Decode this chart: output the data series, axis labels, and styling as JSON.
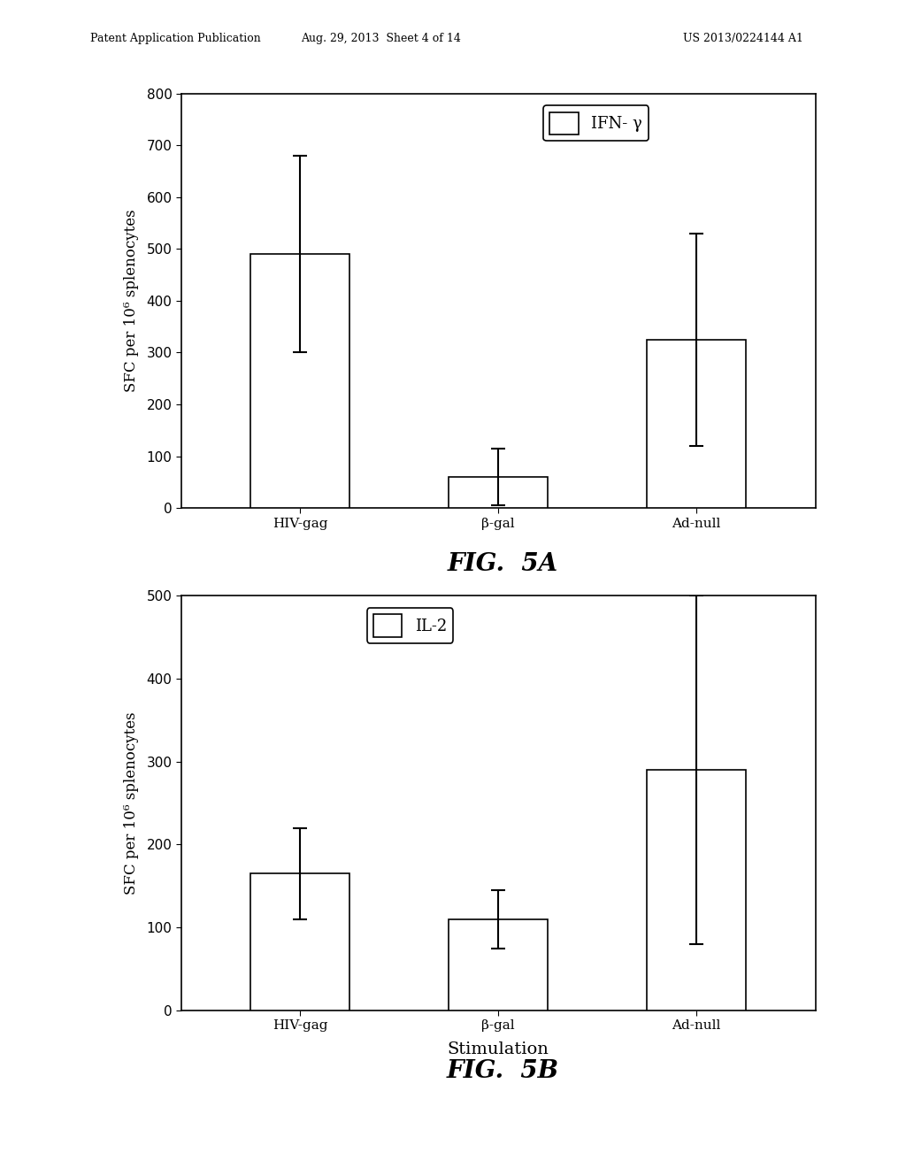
{
  "fig5a": {
    "categories": [
      "HIV-gag",
      "β-gal",
      "Ad-null"
    ],
    "values": [
      490,
      60,
      325
    ],
    "errors": [
      190,
      55,
      205
    ],
    "ylabel": "SFC per 10⁶ splenocytes",
    "ylim": [
      0,
      800
    ],
    "yticks": [
      0,
      100,
      200,
      300,
      400,
      500,
      600,
      700,
      800
    ],
    "legend_label": "IFN- γ",
    "fig_label": "FIG.  5A"
  },
  "fig5b": {
    "categories": [
      "HIV-gag",
      "β-gal",
      "Ad-null"
    ],
    "values": [
      165,
      110,
      290
    ],
    "errors": [
      55,
      35,
      210
    ],
    "ylabel": "SFC per 10⁶ splenocytes",
    "ylim": [
      0,
      500
    ],
    "yticks": [
      0,
      100,
      200,
      300,
      400,
      500
    ],
    "xlabel": "Stimulation",
    "legend_label": "IL-2",
    "fig_label": "FIG.  5B"
  },
  "bar_color": "#ffffff",
  "bar_edgecolor": "#000000",
  "bar_width": 0.5,
  "header_line1": "Patent Application Publication",
  "header_line2": "Aug. 29, 2013  Sheet 4 of 14",
  "header_line3": "US 2013/0224144 A1",
  "background_color": "#ffffff",
  "fig_label_fontsize": 20,
  "axis_fontsize": 12,
  "tick_fontsize": 11,
  "legend_fontsize": 13
}
